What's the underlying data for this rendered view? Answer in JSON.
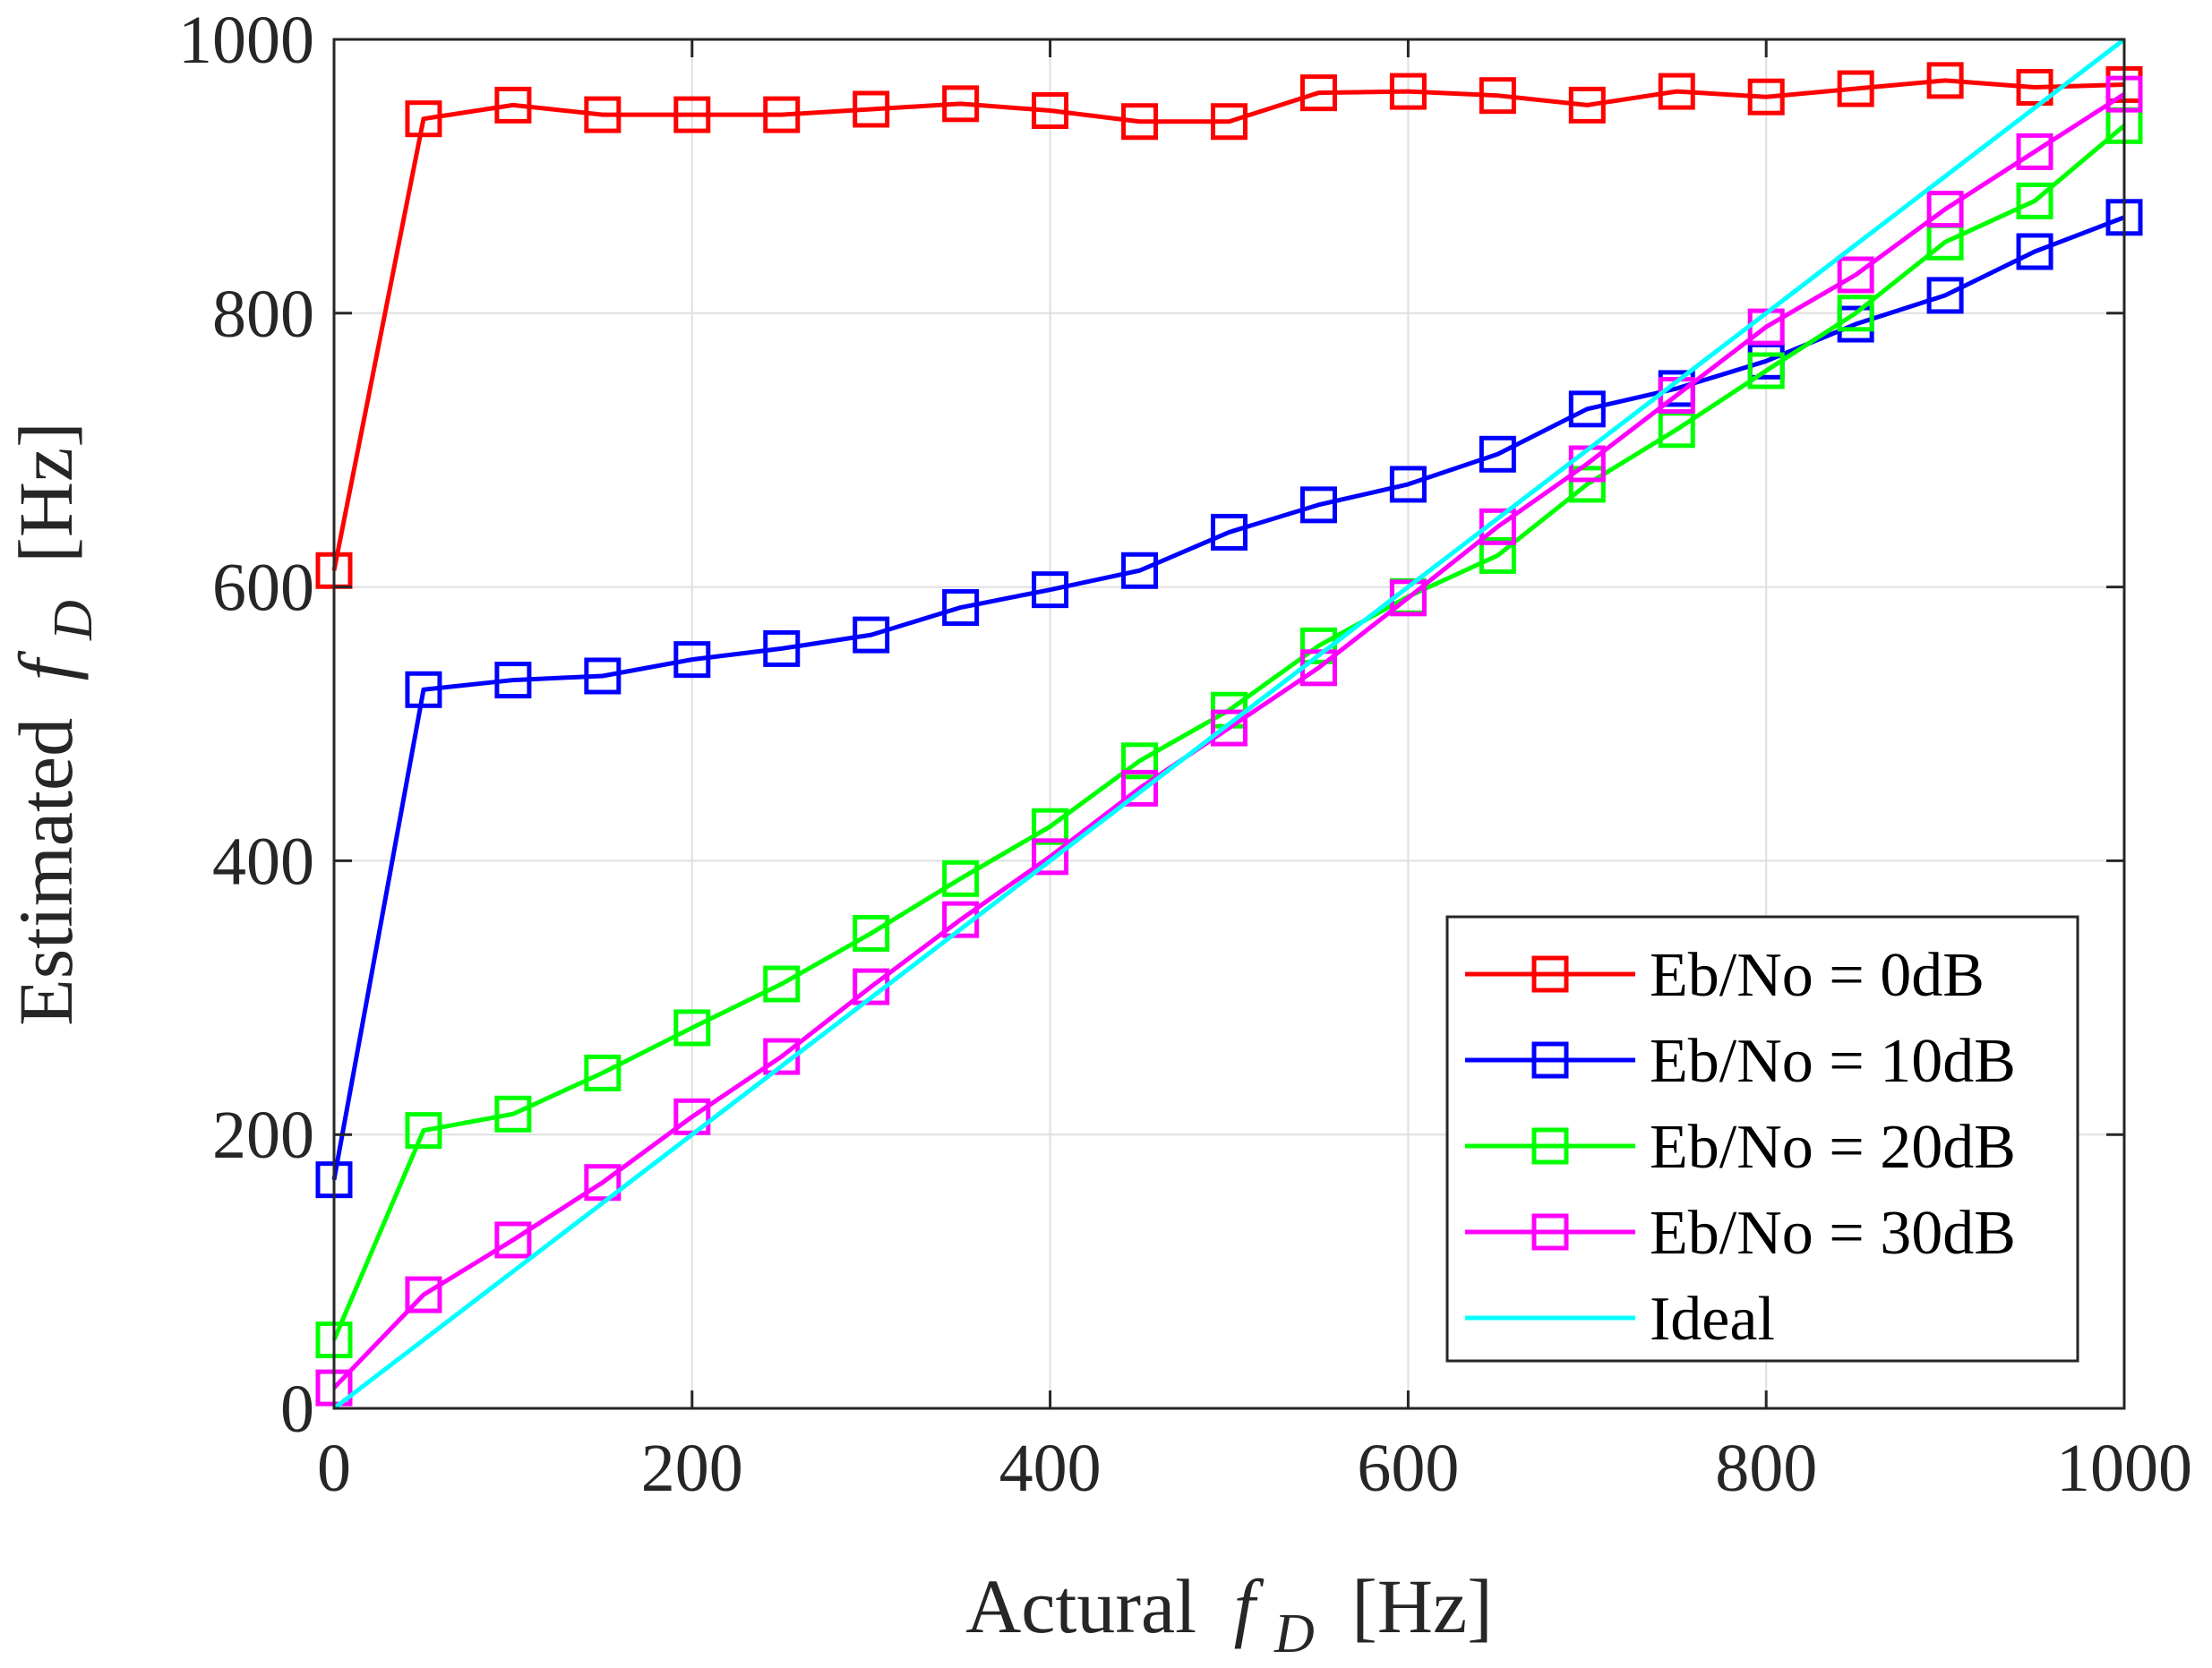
{
  "chart_data": {
    "type": "line",
    "title": "",
    "xlabel": {
      "text": "Actural",
      "symbol": "f",
      "subscript": "D",
      "unit": "[Hz]"
    },
    "ylabel": {
      "text": "Estimated",
      "symbol": "f",
      "subscript": "D",
      "unit": "[Hz]"
    },
    "xlim": [
      0,
      1000
    ],
    "ylim": [
      0,
      1000
    ],
    "xticks": [
      0,
      200,
      400,
      600,
      800,
      1000
    ],
    "yticks": [
      0,
      200,
      400,
      600,
      800,
      1000
    ],
    "xtick_labels": [
      "0",
      "200",
      "400",
      "600",
      "800",
      "1000"
    ],
    "ytick_labels": [
      "0",
      "200",
      "400",
      "600",
      "800",
      "1000"
    ],
    "grid": true,
    "legend_position": "bottom-right",
    "x": [
      0,
      50,
      100,
      150,
      200,
      250,
      300,
      350,
      400,
      450,
      500,
      550,
      600,
      650,
      700,
      750,
      800,
      850,
      900,
      950,
      1000
    ],
    "series": [
      {
        "name": "Eb/No = 0dB",
        "color": "#ff0000",
        "marker": "square",
        "values": [
          612,
          942,
          952,
          945,
          945,
          945,
          949,
          953,
          948,
          940,
          940,
          961,
          962,
          959,
          952,
          962,
          958,
          964,
          970,
          965,
          967
        ]
      },
      {
        "name": "Eb/No = 10dB",
        "color": "#0000ff",
        "marker": "square",
        "values": [
          167,
          525,
          532,
          535,
          547,
          555,
          565,
          585,
          598,
          612,
          640,
          660,
          675,
          697,
          730,
          745,
          765,
          792,
          813,
          845,
          870
        ]
      },
      {
        "name": "Eb/No = 20dB",
        "color": "#00ff00",
        "marker": "square",
        "values": [
          50,
          203,
          215,
          245,
          278,
          310,
          347,
          387,
          425,
          473,
          510,
          557,
          593,
          623,
          675,
          715,
          758,
          800,
          852,
          882,
          937
        ]
      },
      {
        "name": "Eb/No = 30dB",
        "color": "#ff00ff",
        "marker": "square",
        "values": [
          15,
          83,
          123,
          165,
          213,
          257,
          308,
          357,
          403,
          453,
          497,
          541,
          592,
          644,
          690,
          740,
          790,
          828,
          876,
          918,
          960
        ]
      },
      {
        "name": "Ideal",
        "color": "#00ffff",
        "marker": "none",
        "x": [
          0,
          1000
        ],
        "values": [
          0,
          1000
        ]
      }
    ]
  }
}
